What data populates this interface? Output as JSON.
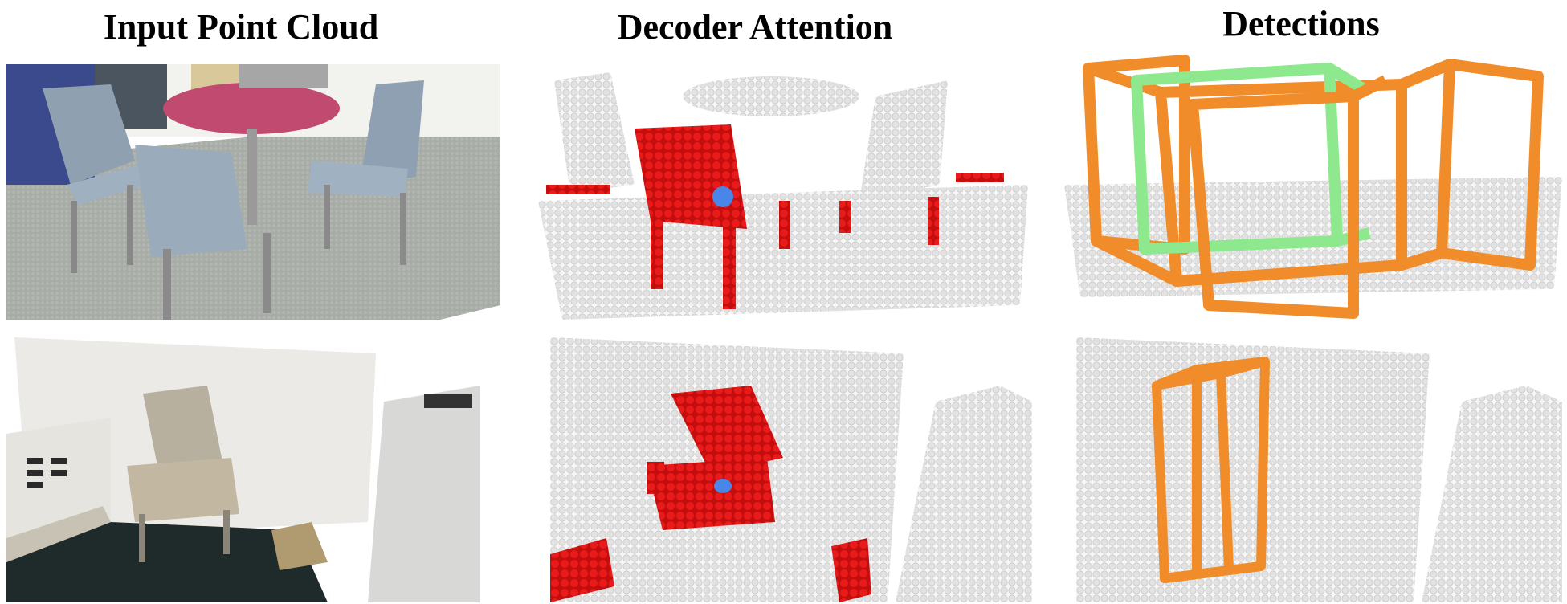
{
  "columns": {
    "input": {
      "title": "Input Point Cloud"
    },
    "attention": {
      "title": "Decoder Attention"
    },
    "detections": {
      "title": "Detections"
    }
  },
  "colors": {
    "attention_points": "#e01010",
    "query_point": "#4a86e8",
    "cloud_points": "#e6e6e6",
    "box_primary": "#f08c2a",
    "box_secondary": "#8ee88e"
  },
  "rows": [
    {
      "scene": "round table with four chairs"
    },
    {
      "scene": "armchair in room corner"
    }
  ]
}
